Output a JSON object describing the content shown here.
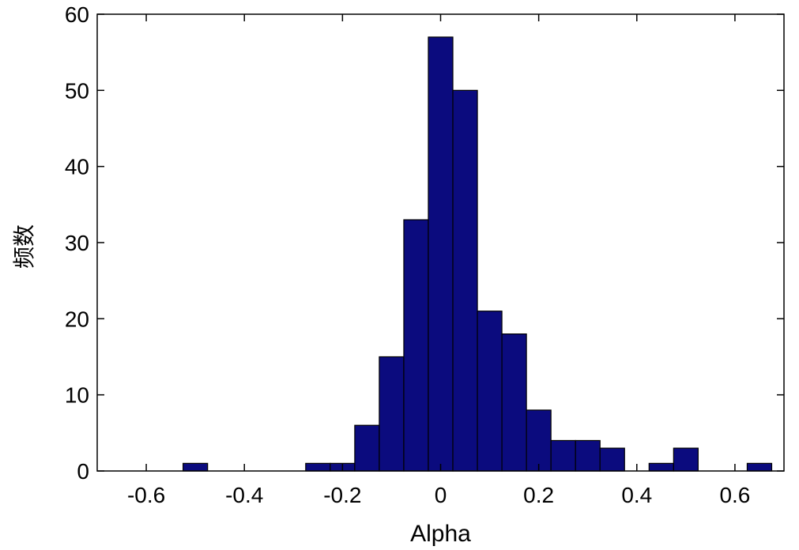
{
  "chart_data": {
    "type": "bar",
    "xlabel": "Alpha",
    "ylabel": "频数",
    "xlim": [
      -0.7,
      0.7
    ],
    "ylim": [
      0,
      60
    ],
    "xticks": [
      -0.6,
      -0.4,
      -0.2,
      0,
      0.2,
      0.4,
      0.6
    ],
    "xtick_labels": [
      "-0.6",
      "-0.4",
      "-0.2",
      "0",
      "0.2",
      "0.4",
      "0.6"
    ],
    "yticks": [
      0,
      10,
      20,
      30,
      40,
      50,
      60
    ],
    "ytick_labels": [
      "0",
      "10",
      "20",
      "30",
      "40",
      "50",
      "60"
    ],
    "bin_width": 0.05,
    "bins": [
      {
        "center": -0.5,
        "count": 1
      },
      {
        "center": -0.25,
        "count": 1
      },
      {
        "center": -0.2,
        "count": 1
      },
      {
        "center": -0.15,
        "count": 6
      },
      {
        "center": -0.1,
        "count": 15
      },
      {
        "center": -0.05,
        "count": 33
      },
      {
        "center": 0.0,
        "count": 57
      },
      {
        "center": 0.05,
        "count": 50
      },
      {
        "center": 0.1,
        "count": 21
      },
      {
        "center": 0.15,
        "count": 18
      },
      {
        "center": 0.2,
        "count": 8
      },
      {
        "center": 0.25,
        "count": 4
      },
      {
        "center": 0.3,
        "count": 4
      },
      {
        "center": 0.35,
        "count": 3
      },
      {
        "center": 0.45,
        "count": 1
      },
      {
        "center": 0.5,
        "count": 3
      },
      {
        "center": 0.65,
        "count": 1
      }
    ],
    "bar_color": "#0b0b7e",
    "edge_color": "#000000",
    "grid": false
  }
}
